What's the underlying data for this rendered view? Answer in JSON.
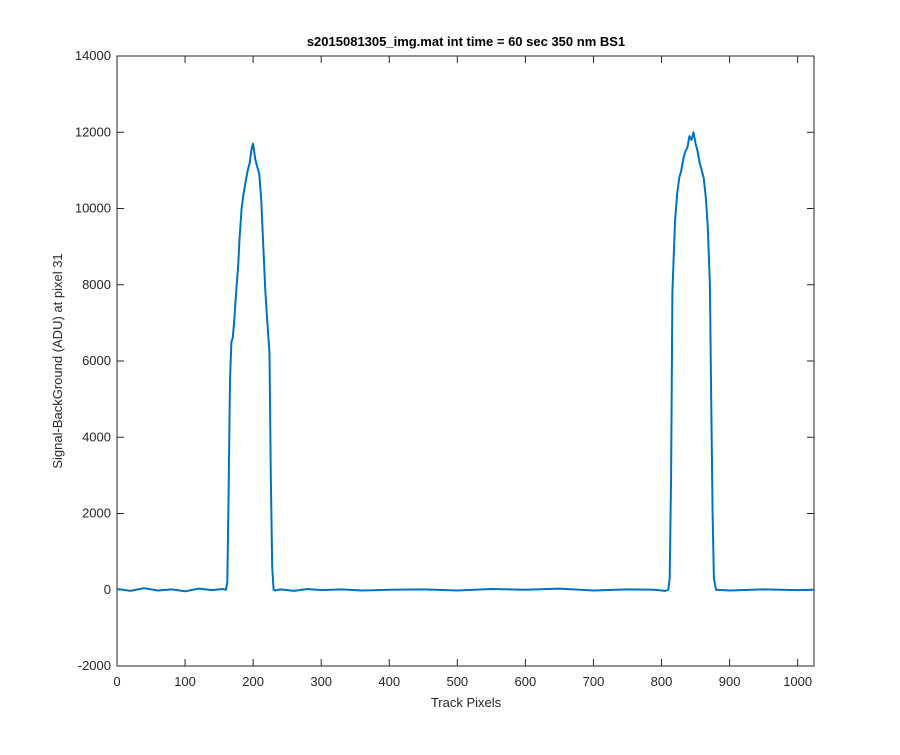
{
  "chart_data": {
    "type": "line",
    "title": "s2015081305_img.mat int time = 60 sec  350 nm BS1",
    "xlabel": "Track Pixels",
    "ylabel": "Signal-BackGround (ADU) at pixel 31",
    "xlim": [
      0,
      1024
    ],
    "ylim": [
      -2000,
      14000
    ],
    "xticks": [
      "0",
      "100",
      "200",
      "300",
      "400",
      "500",
      "600",
      "700",
      "800",
      "900",
      "1000"
    ],
    "yticks": [
      "-2000",
      "0",
      "2000",
      "4000",
      "6000",
      "8000",
      "10000",
      "12000",
      "14000"
    ],
    "grid": false,
    "legend": "none",
    "line_color": "#0072bd",
    "series": [
      {
        "x": [
          0,
          20,
          40,
          60,
          80,
          100,
          120,
          140,
          155,
          160,
          162,
          164,
          166,
          168,
          170,
          172,
          175,
          178,
          180,
          183,
          186,
          189,
          192,
          195,
          198,
          200,
          203,
          206,
          209,
          212,
          215,
          218,
          221,
          224,
          226,
          228,
          230,
          232,
          240,
          260,
          280,
          300,
          330,
          360,
          400,
          450,
          500,
          550,
          600,
          650,
          700,
          750,
          790,
          805,
          810,
          812,
          814,
          816,
          818,
          820,
          823,
          826,
          829,
          832,
          835,
          838,
          841,
          844,
          847,
          850,
          853,
          856,
          859,
          862,
          865,
          868,
          871,
          873,
          875,
          877,
          880,
          900,
          950,
          1000,
          1024
        ],
        "y": [
          20,
          -30,
          40,
          -20,
          10,
          -40,
          30,
          -10,
          20,
          0,
          200,
          2500,
          5500,
          6500,
          6600,
          7000,
          7800,
          8500,
          9200,
          10000,
          10400,
          10700,
          11000,
          11200,
          11600,
          11700,
          11300,
          11100,
          10900,
          10200,
          9000,
          7800,
          7000,
          6200,
          3000,
          600,
          0,
          -20,
          10,
          -30,
          20,
          -10,
          10,
          -20,
          0,
          10,
          -20,
          20,
          0,
          30,
          -20,
          10,
          0,
          -30,
          0,
          300,
          3000,
          7800,
          8800,
          9700,
          10400,
          10800,
          11000,
          11300,
          11500,
          11600,
          11900,
          11800,
          12000,
          11700,
          11500,
          11200,
          11000,
          10800,
          10300,
          9500,
          8000,
          5000,
          2000,
          300,
          0,
          -20,
          10,
          -10,
          0
        ]
      }
    ]
  }
}
